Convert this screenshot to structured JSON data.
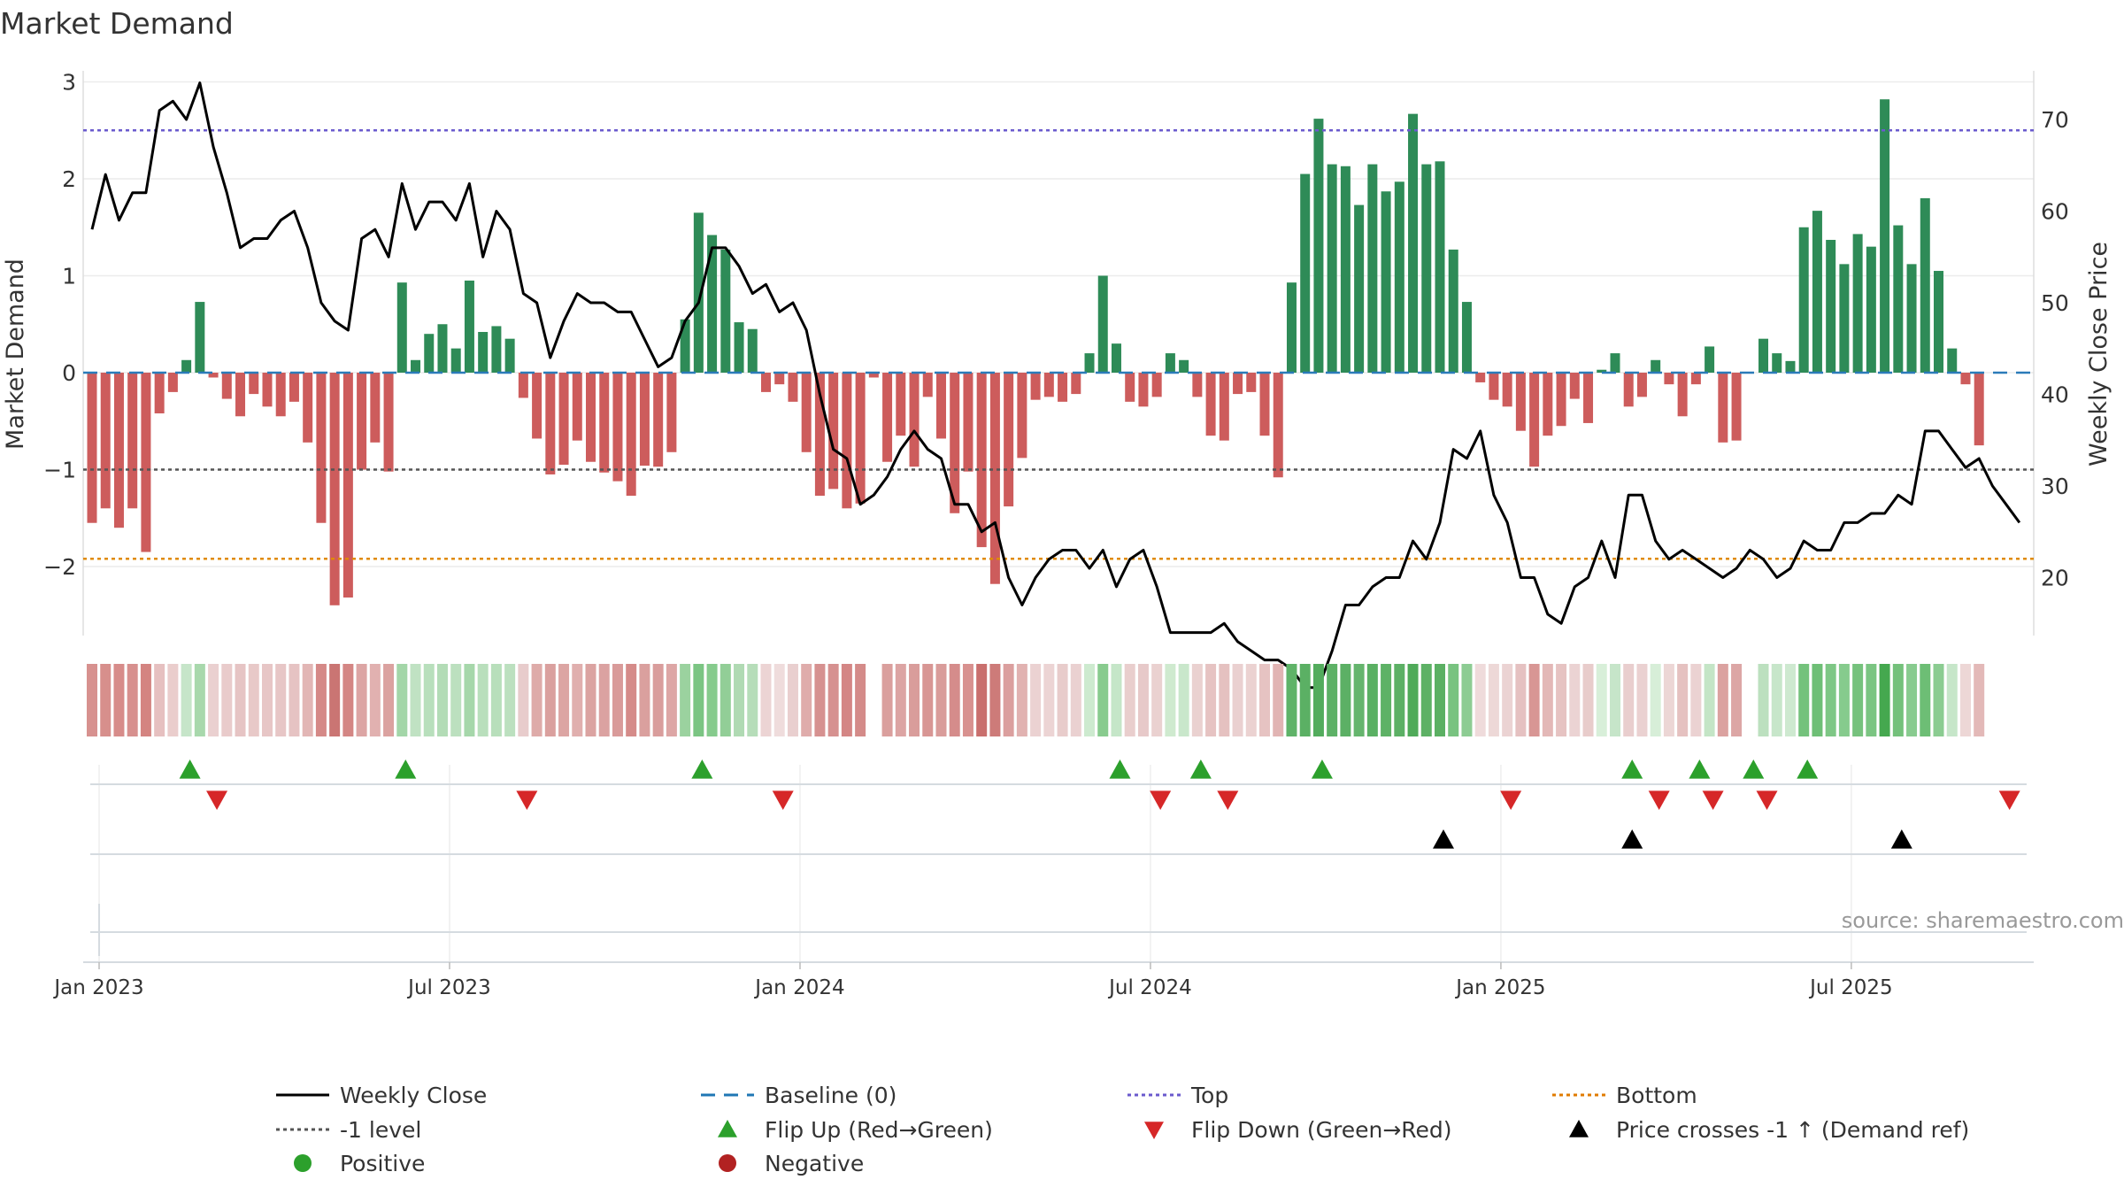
{
  "chart_data": {
    "type": "bar+line",
    "title": "Market Demand",
    "ylabel_left": "Market Demand",
    "ylabel_right": "Weekly Close Price",
    "source": "source: sharemaestro.com",
    "ylim_left": [
      -2.6,
      3.1
    ],
    "ylim_right": [
      12.2,
      75.0
    ],
    "yticks_left": [
      3,
      2,
      1,
      0,
      -1,
      -2
    ],
    "yticks_left_labels": [
      "3",
      "2",
      "1",
      "0",
      "−1",
      "−2"
    ],
    "yticks_right": [
      70,
      60,
      50,
      40,
      30,
      20
    ],
    "x_start_date": "2023-01-01",
    "xticks": [
      {
        "week": 0,
        "label": "Jan 2023"
      },
      {
        "week": 26,
        "label": "Jul 2023"
      },
      {
        "week": 52,
        "label": "Jan 2024"
      },
      {
        "week": 78,
        "label": "Jul 2024"
      },
      {
        "week": 104,
        "label": "Jan 2025"
      },
      {
        "week": 130,
        "label": "Jul 2025"
      }
    ],
    "reference_lines": {
      "top": 2.5,
      "bottom": -1.92,
      "minus_one": -1,
      "baseline": 0
    },
    "demand": [
      -1.55,
      -1.4,
      -1.6,
      -1.4,
      -1.85,
      -0.42,
      -0.2,
      0.13,
      0.73,
      -0.05,
      -0.27,
      -0.45,
      -0.22,
      -0.35,
      -0.45,
      -0.3,
      -0.72,
      -1.55,
      -2.4,
      -2.32,
      -1.0,
      -0.72,
      -1.02,
      0.93,
      0.13,
      0.4,
      0.5,
      0.25,
      0.95,
      0.42,
      0.48,
      0.35,
      -0.26,
      -0.68,
      -1.05,
      -0.95,
      -0.7,
      -0.92,
      -1.03,
      -1.12,
      -1.27,
      -0.96,
      -0.97,
      -0.82,
      0.55,
      1.65,
      1.42,
      1.27,
      0.52,
      0.45,
      -0.2,
      -0.12,
      -0.3,
      -0.82,
      -1.27,
      -1.2,
      -1.4,
      -1.35,
      -0.05,
      -0.92,
      -0.65,
      -0.97,
      -0.25,
      -0.68,
      -1.45,
      -1.02,
      -1.8,
      -2.18,
      -1.38,
      -0.88,
      -0.28,
      -0.25,
      -0.3,
      -0.22,
      0.2,
      1.0,
      0.3,
      -0.3,
      -0.35,
      -0.25,
      0.2,
      0.13,
      -0.25,
      -0.65,
      -0.7,
      -0.22,
      -0.2,
      -0.65,
      -1.08,
      0.93,
      2.05,
      2.62,
      2.15,
      2.13,
      1.73,
      2.15,
      1.87,
      1.97,
      2.67,
      2.15,
      2.18,
      1.27,
      0.73,
      -0.1,
      -0.28,
      -0.35,
      -0.6,
      -0.97,
      -0.65,
      -0.55,
      -0.27,
      -0.52,
      0.03,
      0.2,
      -0.35,
      -0.25,
      0.13,
      -0.12,
      -0.45,
      -0.12,
      0.27,
      -0.72,
      -0.7,
      0.0,
      0.35,
      0.2,
      0.12,
      1.5,
      1.67,
      1.37,
      1.12,
      1.43,
      1.3,
      2.82,
      1.52,
      1.12,
      1.8,
      1.05,
      0.25,
      -0.12,
      -0.75
    ],
    "weekly_close": [
      58,
      64,
      59,
      62,
      62,
      71,
      72,
      70,
      74,
      67,
      62,
      56,
      57,
      57,
      59,
      60,
      56,
      50,
      48,
      47,
      57,
      58,
      55,
      63,
      58,
      61,
      61,
      59,
      63,
      55,
      60,
      58,
      51,
      50,
      44,
      48,
      51,
      50,
      50,
      49,
      49,
      46,
      43,
      44,
      48,
      50,
      56,
      56,
      54,
      51,
      52,
      49,
      50,
      47,
      40,
      34,
      33,
      28,
      29,
      31,
      34,
      36,
      34,
      33,
      28,
      28,
      25,
      26,
      20,
      17,
      20,
      22,
      23,
      23,
      21,
      23,
      19,
      22,
      23,
      19,
      14,
      14,
      14,
      14,
      15,
      13,
      12,
      11,
      11,
      10,
      8,
      8,
      12,
      17,
      17,
      19,
      20,
      20,
      24,
      22,
      26,
      34,
      33,
      36,
      29,
      26,
      20,
      20,
      16,
      15,
      19,
      20,
      24,
      20,
      29,
      29,
      24,
      22,
      23,
      22,
      21,
      20,
      21,
      23,
      22,
      20,
      21,
      24,
      23,
      23,
      26,
      26,
      27,
      27,
      29,
      28,
      36,
      36,
      34,
      32,
      33,
      30,
      28,
      26
    ],
    "strip_colors": [
      "#D7918F",
      "#D78F8C",
      "#D78C8A",
      "#D7908E",
      "#D48481",
      "#E6C0C0",
      "#EACDCC",
      "#C6E5C9",
      "#A8D8AC",
      "#EAD0D0",
      "#E9CBCB",
      "#E6C4C4",
      "#E8C9C8",
      "#E7C6C6",
      "#E7C6C6",
      "#E6C3C3",
      "#E2B6B5",
      "#D58987",
      "#CA7573",
      "#D48684",
      "#DCA5A4",
      "#E1B1B0",
      "#DBA2A0",
      "#A3D6A8",
      "#C0E2C3",
      "#B8DFBC",
      "#B3DCB6",
      "#BCE0BF",
      "#A6D7AA",
      "#B9DFBC",
      "#B8DFBB",
      "#BCE0BF",
      "#E8CCCC",
      "#DEABA9",
      "#DAA09E",
      "#DCA5A3",
      "#E0AFAE",
      "#DBA3A1",
      "#DBA2A1",
      "#D99B9A",
      "#D58B89",
      "#DAA09E",
      "#D99D9C",
      "#DDA6A5",
      "#9BD29F",
      "#7BC583",
      "#86CB8D",
      "#92CE97",
      "#B0DAB3",
      "#B6DDB9",
      "#ECD4D4",
      "#EFDCDC",
      "#E9CFCF",
      "#DFACAB",
      "#D69190",
      "#D69190",
      "#D48685",
      "#D48B89",
      "#FFFFFF",
      "#DA9F9D",
      "#DCA4A3",
      "#D99D9B",
      "#D89694",
      "#D99C9A",
      "#D58C8B",
      "#D8918F",
      "#C96F6D",
      "#CD7B79",
      "#DB9F9E",
      "#E1B2B1",
      "#EBD2D2",
      "#ECD4D4",
      "#E8CCCB",
      "#EAD1D1",
      "#CDEACF",
      "#88CB8E",
      "#C5E6C8",
      "#E9CECD",
      "#E7C9C9",
      "#EAD1D0",
      "#CFEACF",
      "#C9E7CB",
      "#EAD1D0",
      "#E6C3C2",
      "#E5C1C0",
      "#EAD0D0",
      "#EBD2D1",
      "#E6C3C2",
      "#E1B4B3",
      "#5FB368",
      "#5BB064",
      "#53AC5D",
      "#5DB166",
      "#5CB065",
      "#65B56D",
      "#5AB063",
      "#5EB266",
      "#5CB065",
      "#4FAA59",
      "#5DB165",
      "#5BB063",
      "#78C380",
      "#8DCC93",
      "#EFDBDB",
      "#EDD8D7",
      "#EBD3D3",
      "#E5C1C1",
      "#D89694",
      "#E3B8B7",
      "#E6C3C2",
      "#EBD3D3",
      "#E8CCCB",
      "#D8EFD9",
      "#C6E5C9",
      "#E9CECE",
      "#EAD1D1",
      "#D7EED8",
      "#ECD6D5",
      "#E5C1C0",
      "#EBD2D2",
      "#C4E5C6",
      "#DBA2A0",
      "#DCA6A5",
      "#FFFFFF",
      "#BCE0BF",
      "#C7E6CA",
      "#CEE9D0",
      "#74C27C",
      "#6EBF76",
      "#7EC785",
      "#86CB8D",
      "#76C27D",
      "#7BC582",
      "#45A84F",
      "#74C17B",
      "#88CB8F",
      "#6DBE75",
      "#8BCC91",
      "#C6E6C9",
      "#EDD7D6",
      "#E3B9B8"
    ],
    "flip_up_weeks": [
      7,
      23,
      45,
      76,
      82,
      91,
      114,
      119,
      123,
      127
    ],
    "flip_down_weeks": [
      9,
      32,
      51,
      79,
      84,
      105,
      116,
      120,
      124,
      142
    ],
    "price_cross_weeks": [
      100,
      114,
      134
    ]
  },
  "legend": [
    {
      "label": "Weekly Close",
      "marker": "line-solid",
      "color": "#000000"
    },
    {
      "label": "Baseline (0)",
      "marker": "line-dashed",
      "color": "#1f77b4"
    },
    {
      "label": "Top",
      "marker": "line-dotted",
      "color": "#6a5acd"
    },
    {
      "label": "Bottom",
      "marker": "line-dotted",
      "color": "#e07b00"
    },
    {
      "label": "-1 level",
      "marker": "line-dotted",
      "color": "#555555"
    },
    {
      "label": "Flip Up (Red→Green)",
      "marker": "triangle-up",
      "color": "#2ca02c"
    },
    {
      "label": "Flip Down (Green→Red)",
      "marker": "triangle-down",
      "color": "#d62728"
    },
    {
      "label": "Price crosses -1 ↑ (Demand ref)",
      "marker": "triangle-up",
      "color": "#000000"
    },
    {
      "label": "Positive",
      "marker": "circle",
      "color": "#2ca02c"
    },
    {
      "label": "Negative",
      "marker": "circle",
      "color": "#b22222"
    }
  ],
  "colors": {
    "positive_bar": "#2E8B57",
    "negative_bar": "#CD5C5C",
    "close_line": "#000000",
    "flip_up": "#2ca02c",
    "flip_down": "#d62728",
    "price_cross": "#000000"
  }
}
